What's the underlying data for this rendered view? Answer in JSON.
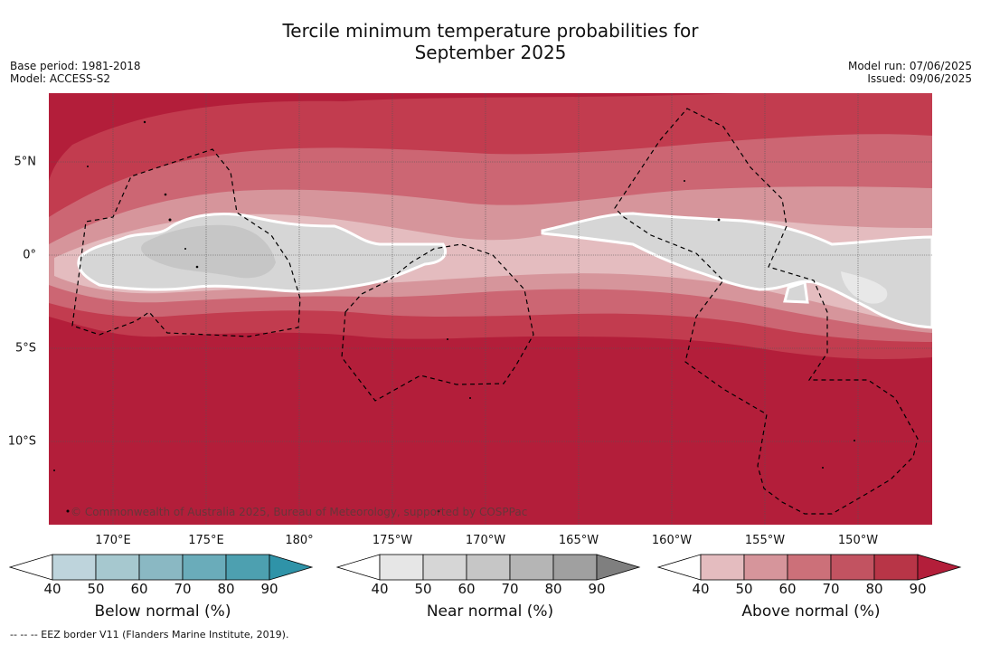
{
  "title": {
    "line1": "Tercile minimum temperature probabilities for",
    "line2": "September 2025"
  },
  "meta": {
    "base_period": "Base period: 1981-2018",
    "model": "Model: ACCESS-S2",
    "model_run": "Model run: 07/06/2025",
    "issued": "Issued: 09/06/2025"
  },
  "map": {
    "lat_labels": [
      "5°N",
      "0°",
      "5°S",
      "10°S"
    ],
    "lon_labels": [
      "170°E",
      "175°E",
      "180°",
      "175°W",
      "170°W",
      "165°W",
      "160°W",
      "155°W",
      "150°W"
    ],
    "copyright": "© Commonwealth of Australia 2025, Bureau of Meteorology, supported by COSPPac",
    "colors": {
      "above_90": "#b31e3a",
      "above_80": "#c23c4f",
      "above_70": "#cc6673",
      "above_60": "#d6959b",
      "above_50": "#e4bcbf",
      "near_50": "#d6d6d6",
      "near_60": "#c6c6c6",
      "ocean_edge": "#ffffff"
    }
  },
  "colorbars": [
    {
      "name": "below",
      "label": "Below normal (%)",
      "ticks": [
        "40",
        "50",
        "60",
        "70",
        "80",
        "90"
      ],
      "colors": [
        "#bed4dc",
        "#a6c8cf",
        "#8ab8c3",
        "#6aacba",
        "#4da0b0",
        "#2f93a8"
      ]
    },
    {
      "name": "near",
      "label": "Near normal (%)",
      "ticks": [
        "40",
        "50",
        "60",
        "70",
        "80",
        "90"
      ],
      "colors": [
        "#e6e6e6",
        "#d6d6d6",
        "#c6c6c6",
        "#b5b5b5",
        "#a0a0a0",
        "#7f7f7f"
      ]
    },
    {
      "name": "above",
      "label": "Above normal (%)",
      "ticks": [
        "40",
        "50",
        "60",
        "70",
        "80",
        "90"
      ],
      "colors": [
        "#e4bcbf",
        "#d6959b",
        "#cc7079",
        "#c25361",
        "#b83547",
        "#b31e3a"
      ]
    }
  ],
  "footnote": "--  --  -- EEZ border V11 (Flanders Marine Institute, 2019)."
}
